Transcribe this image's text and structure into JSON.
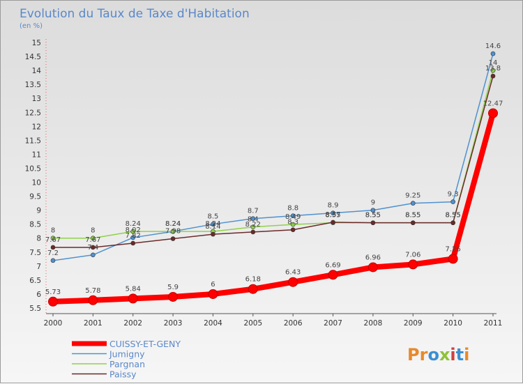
{
  "chart_data": {
    "type": "line",
    "title": "Evolution du Taux de Taxe d'Habitation",
    "subtitle": "(en %)",
    "x": [
      "2000",
      "2001",
      "2002",
      "2003",
      "2004",
      "2005",
      "2006",
      "2007",
      "2008",
      "2009",
      "2010",
      "2011"
    ],
    "y_ticks": [
      "5.5",
      "6",
      "6.5",
      "7",
      "7.5",
      "8",
      "8.5",
      "9",
      "9.5",
      "10",
      "10.5",
      "11",
      "11.5",
      "12",
      "12.5",
      "13",
      "13.5",
      "14",
      "14.5",
      "15"
    ],
    "ylim": [
      5.5,
      15
    ],
    "grid": false,
    "legend_position": "bottom-left",
    "series": [
      {
        "name": "CUISSY-ET-GENY",
        "color": "#ff0000",
        "values": [
          5.73,
          5.78,
          5.84,
          5.9,
          6,
          6.18,
          6.43,
          6.69,
          6.96,
          7.06,
          7.26,
          12.47
        ],
        "labels": [
          "5.73",
          "5.78",
          "5.84",
          "5.9",
          "6",
          "6.18",
          "6.43",
          "6.69",
          "6.96",
          "7.06",
          "7.26",
          "12.47"
        ]
      },
      {
        "name": "Jumigny",
        "color": "#4f91cf",
        "values": [
          7.2,
          7.4,
          8.02,
          8.24,
          8.5,
          8.7,
          8.8,
          8.9,
          9,
          9.25,
          9.3,
          14.6
        ],
        "labels": [
          "7.2",
          "7.4",
          "8.02",
          "8.24",
          "8.5",
          "8.7",
          "8.8",
          "8.9",
          "9",
          "9.25",
          "9.3",
          "14.6"
        ]
      },
      {
        "name": "Pargnan",
        "color": "#8fd24a",
        "values": [
          8,
          8,
          8.24,
          8.24,
          8.24,
          8.4,
          8.49,
          8.55,
          8.55,
          8.55,
          8.55,
          14
        ],
        "labels": [
          "8",
          "8",
          "8.24",
          "8.24",
          "8.24",
          "8.4",
          "8.49",
          "8.55",
          "8.55",
          "8.55",
          "8.55",
          "14"
        ]
      },
      {
        "name": "Paissy",
        "color": "#6b2a2a",
        "values": [
          7.67,
          7.67,
          7.82,
          7.98,
          8.14,
          8.22,
          8.3,
          8.57,
          8.55,
          8.55,
          8.55,
          13.8
        ],
        "labels": [
          "7.67",
          "7.67",
          "7.82",
          "7.98",
          "8.14",
          "8.22",
          "8.3",
          "8.57",
          "8.55",
          "8.55",
          "8.55",
          "13.8"
        ]
      }
    ]
  },
  "watermark": "Proxiti"
}
